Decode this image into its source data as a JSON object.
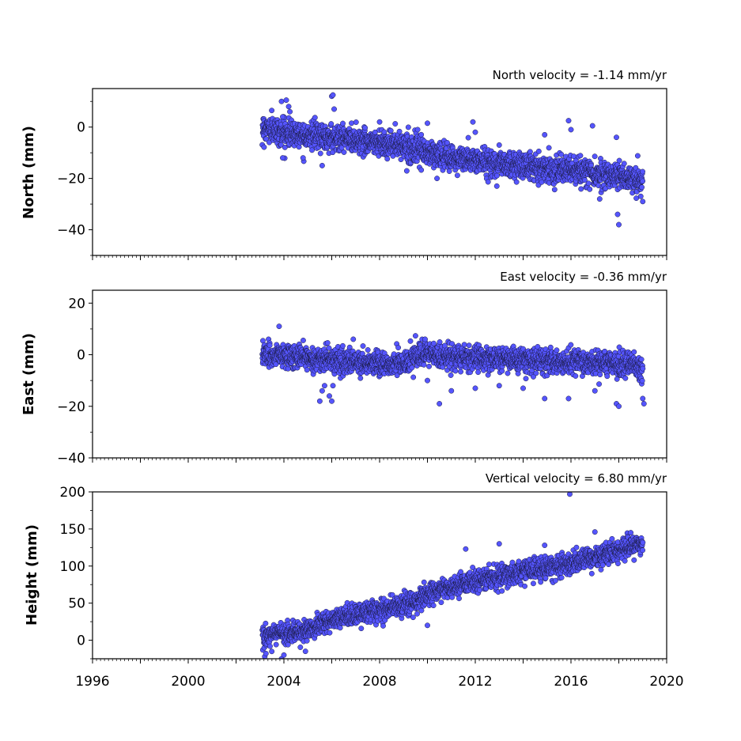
{
  "chart_data": [
    {
      "type": "scatter",
      "title": "North velocity = -1.14 mm/yr",
      "xlabel": "",
      "ylabel": "North (mm)",
      "xlim": [
        1996,
        2020
      ],
      "ylim": [
        -50,
        15
      ],
      "xticks": [
        1996,
        1998,
        2000,
        2002,
        2004,
        2006,
        2008,
        2010,
        2012,
        2014,
        2016,
        2018,
        2020
      ],
      "yticks": [
        0,
        -20,
        -40
      ],
      "yticklabels": [
        "0",
        "−20",
        "−40"
      ],
      "show_xticklabels": false,
      "marker_color": "#5555ff",
      "series": [
        {
          "x": [
            2003.1,
            2003.5,
            2004.0,
            2004.5,
            2005.0,
            2005.5,
            2006.0,
            2006.5,
            2007.0,
            2007.5,
            2008.0,
            2008.5,
            2009.0,
            2009.5,
            2010.0,
            2010.5,
            2011.0,
            2011.5,
            2012.0,
            2012.5,
            2013.0,
            2013.5,
            2014.0,
            2014.5,
            2015.0,
            2015.5,
            2016.0,
            2016.5,
            2017.0,
            2017.5,
            2018.0,
            2018.5,
            2019.0
          ],
          "y": [
            0,
            -1,
            -2,
            -2.5,
            -3,
            -3.5,
            -4,
            -4.5,
            -5,
            -5.5,
            -6,
            -6.5,
            -7,
            -8.5,
            -10,
            -11,
            -12,
            -12.5,
            -13,
            -13.5,
            -14,
            -14.5,
            -15,
            -15.5,
            -16,
            -16.5,
            -17,
            -17.5,
            -18,
            -18.5,
            -19,
            -20,
            -21
          ],
          "spread": 2.5
        }
      ],
      "outliers": {
        "x": [
          2003.9,
          2004.1,
          2004.2,
          2004.25,
          2003.95,
          2006.0,
          2006.05,
          2006.1,
          2005.6,
          2004.8,
          2008.0,
          2010.0,
          2011.9,
          2012.0,
          2013.0,
          2014.9,
          2015.9,
          2016.0,
          2016.9,
          2017.9,
          2017.95,
          2018.0,
          2003.95,
          2010.4,
          2012.9,
          2017.2,
          2019.0
        ],
        "y": [
          10,
          10.5,
          8,
          6,
          -12,
          12,
          12.5,
          7,
          -15,
          -12,
          2,
          1.5,
          2,
          -2,
          -7,
          -3,
          2.5,
          -1,
          0.5,
          -4,
          -34,
          -38,
          4,
          -20,
          -23,
          -28,
          -29
        ]
      }
    },
    {
      "type": "scatter",
      "title": "East velocity = -0.36 mm/yr",
      "xlabel": "",
      "ylabel": "East (mm)",
      "xlim": [
        1996,
        2020
      ],
      "ylim": [
        -40,
        25
      ],
      "xticks": [
        1996,
        1998,
        2000,
        2002,
        2004,
        2006,
        2008,
        2010,
        2012,
        2014,
        2016,
        2018,
        2020
      ],
      "yticks": [
        20,
        0,
        -20,
        -40
      ],
      "yticklabels": [
        "20",
        "0",
        "−20",
        "−40"
      ],
      "show_xticklabels": false,
      "marker_color": "#5555ff",
      "series": [
        {
          "x": [
            2003.1,
            2003.5,
            2004.0,
            2004.5,
            2005.0,
            2005.5,
            2006.0,
            2006.5,
            2007.0,
            2007.5,
            2008.0,
            2008.5,
            2009.0,
            2009.5,
            2010.0,
            2010.5,
            2011.0,
            2011.5,
            2012.0,
            2012.5,
            2013.0,
            2013.5,
            2014.0,
            2014.5,
            2015.0,
            2015.5,
            2016.0,
            2016.5,
            2017.0,
            2017.5,
            2018.0,
            2018.5,
            2019.0
          ],
          "y": [
            0,
            -0.5,
            -0.5,
            -1,
            -1,
            -2,
            -2,
            -2.5,
            -3,
            -3,
            -3.5,
            -3.5,
            -3,
            -1,
            0,
            -0.5,
            -1,
            -1,
            -1,
            -1.5,
            -1.5,
            -2,
            -2,
            -2.5,
            -2.5,
            -3,
            -3,
            -3,
            -3.5,
            -3.5,
            -3.5,
            -4,
            -5
          ],
          "spread": 2.3
        }
      ],
      "outliers": {
        "x": [
          2003.8,
          2005.5,
          2005.6,
          2005.9,
          2006.0,
          2006.05,
          2010.0,
          2010.5,
          2011.0,
          2012.0,
          2013.0,
          2014.0,
          2014.9,
          2015.9,
          2017.0,
          2017.9,
          2018.0,
          2019.0,
          2019.05,
          2005.7,
          2006.9,
          2009.9
        ],
        "y": [
          11,
          -18,
          -14,
          -16,
          -18,
          -12,
          -10,
          -19,
          -14,
          -13,
          -12,
          -13,
          -17,
          -17,
          -14,
          -19,
          -20,
          -17,
          -19,
          -12,
          6,
          6
        ]
      }
    },
    {
      "type": "scatter",
      "title": "Vertical velocity = 6.80 mm/yr",
      "xlabel": "",
      "ylabel": "Height (mm)",
      "xlim": [
        1996,
        2020
      ],
      "ylim": [
        -25,
        200
      ],
      "xticks": [
        1996,
        1998,
        2000,
        2002,
        2004,
        2006,
        2008,
        2010,
        2012,
        2014,
        2016,
        2018,
        2020
      ],
      "xticklabels": [
        "1996",
        "",
        "2000",
        "",
        "2004",
        "",
        "2008",
        "",
        "2012",
        "",
        "2016",
        "",
        "2020"
      ],
      "yticks": [
        200,
        150,
        100,
        50,
        0
      ],
      "yticklabels": [
        "200",
        "150",
        "100",
        "50",
        "0"
      ],
      "show_xticklabels": true,
      "marker_color": "#5555ff",
      "series": [
        {
          "x": [
            2003.1,
            2003.5,
            2004.0,
            2004.5,
            2005.0,
            2005.5,
            2006.0,
            2006.5,
            2007.0,
            2007.5,
            2008.0,
            2008.5,
            2009.0,
            2009.5,
            2010.0,
            2010.5,
            2011.0,
            2011.5,
            2012.0,
            2012.5,
            2013.0,
            2013.5,
            2014.0,
            2014.5,
            2015.0,
            2015.5,
            2016.0,
            2016.5,
            2017.0,
            2017.5,
            2018.0,
            2018.5,
            2019.0
          ],
          "y": [
            2,
            8,
            10,
            12,
            15,
            20,
            25,
            30,
            35,
            38,
            40,
            44,
            46,
            52,
            62,
            68,
            72,
            76,
            80,
            84,
            86,
            90,
            93,
            96,
            98,
            101,
            104,
            108,
            113,
            118,
            122,
            126,
            130
          ],
          "spread": 7
        }
      ],
      "outliers": {
        "x": [
          2003.2,
          2003.25,
          2003.9,
          2004.0,
          2004.9,
          2010.0,
          2011.6,
          2013.0,
          2014.9,
          2015.95,
          2017.0,
          2018.5
        ],
        "y": [
          -22,
          -18,
          -25,
          -20,
          -15,
          20,
          123,
          130,
          128,
          197,
          146,
          145
        ]
      }
    }
  ]
}
